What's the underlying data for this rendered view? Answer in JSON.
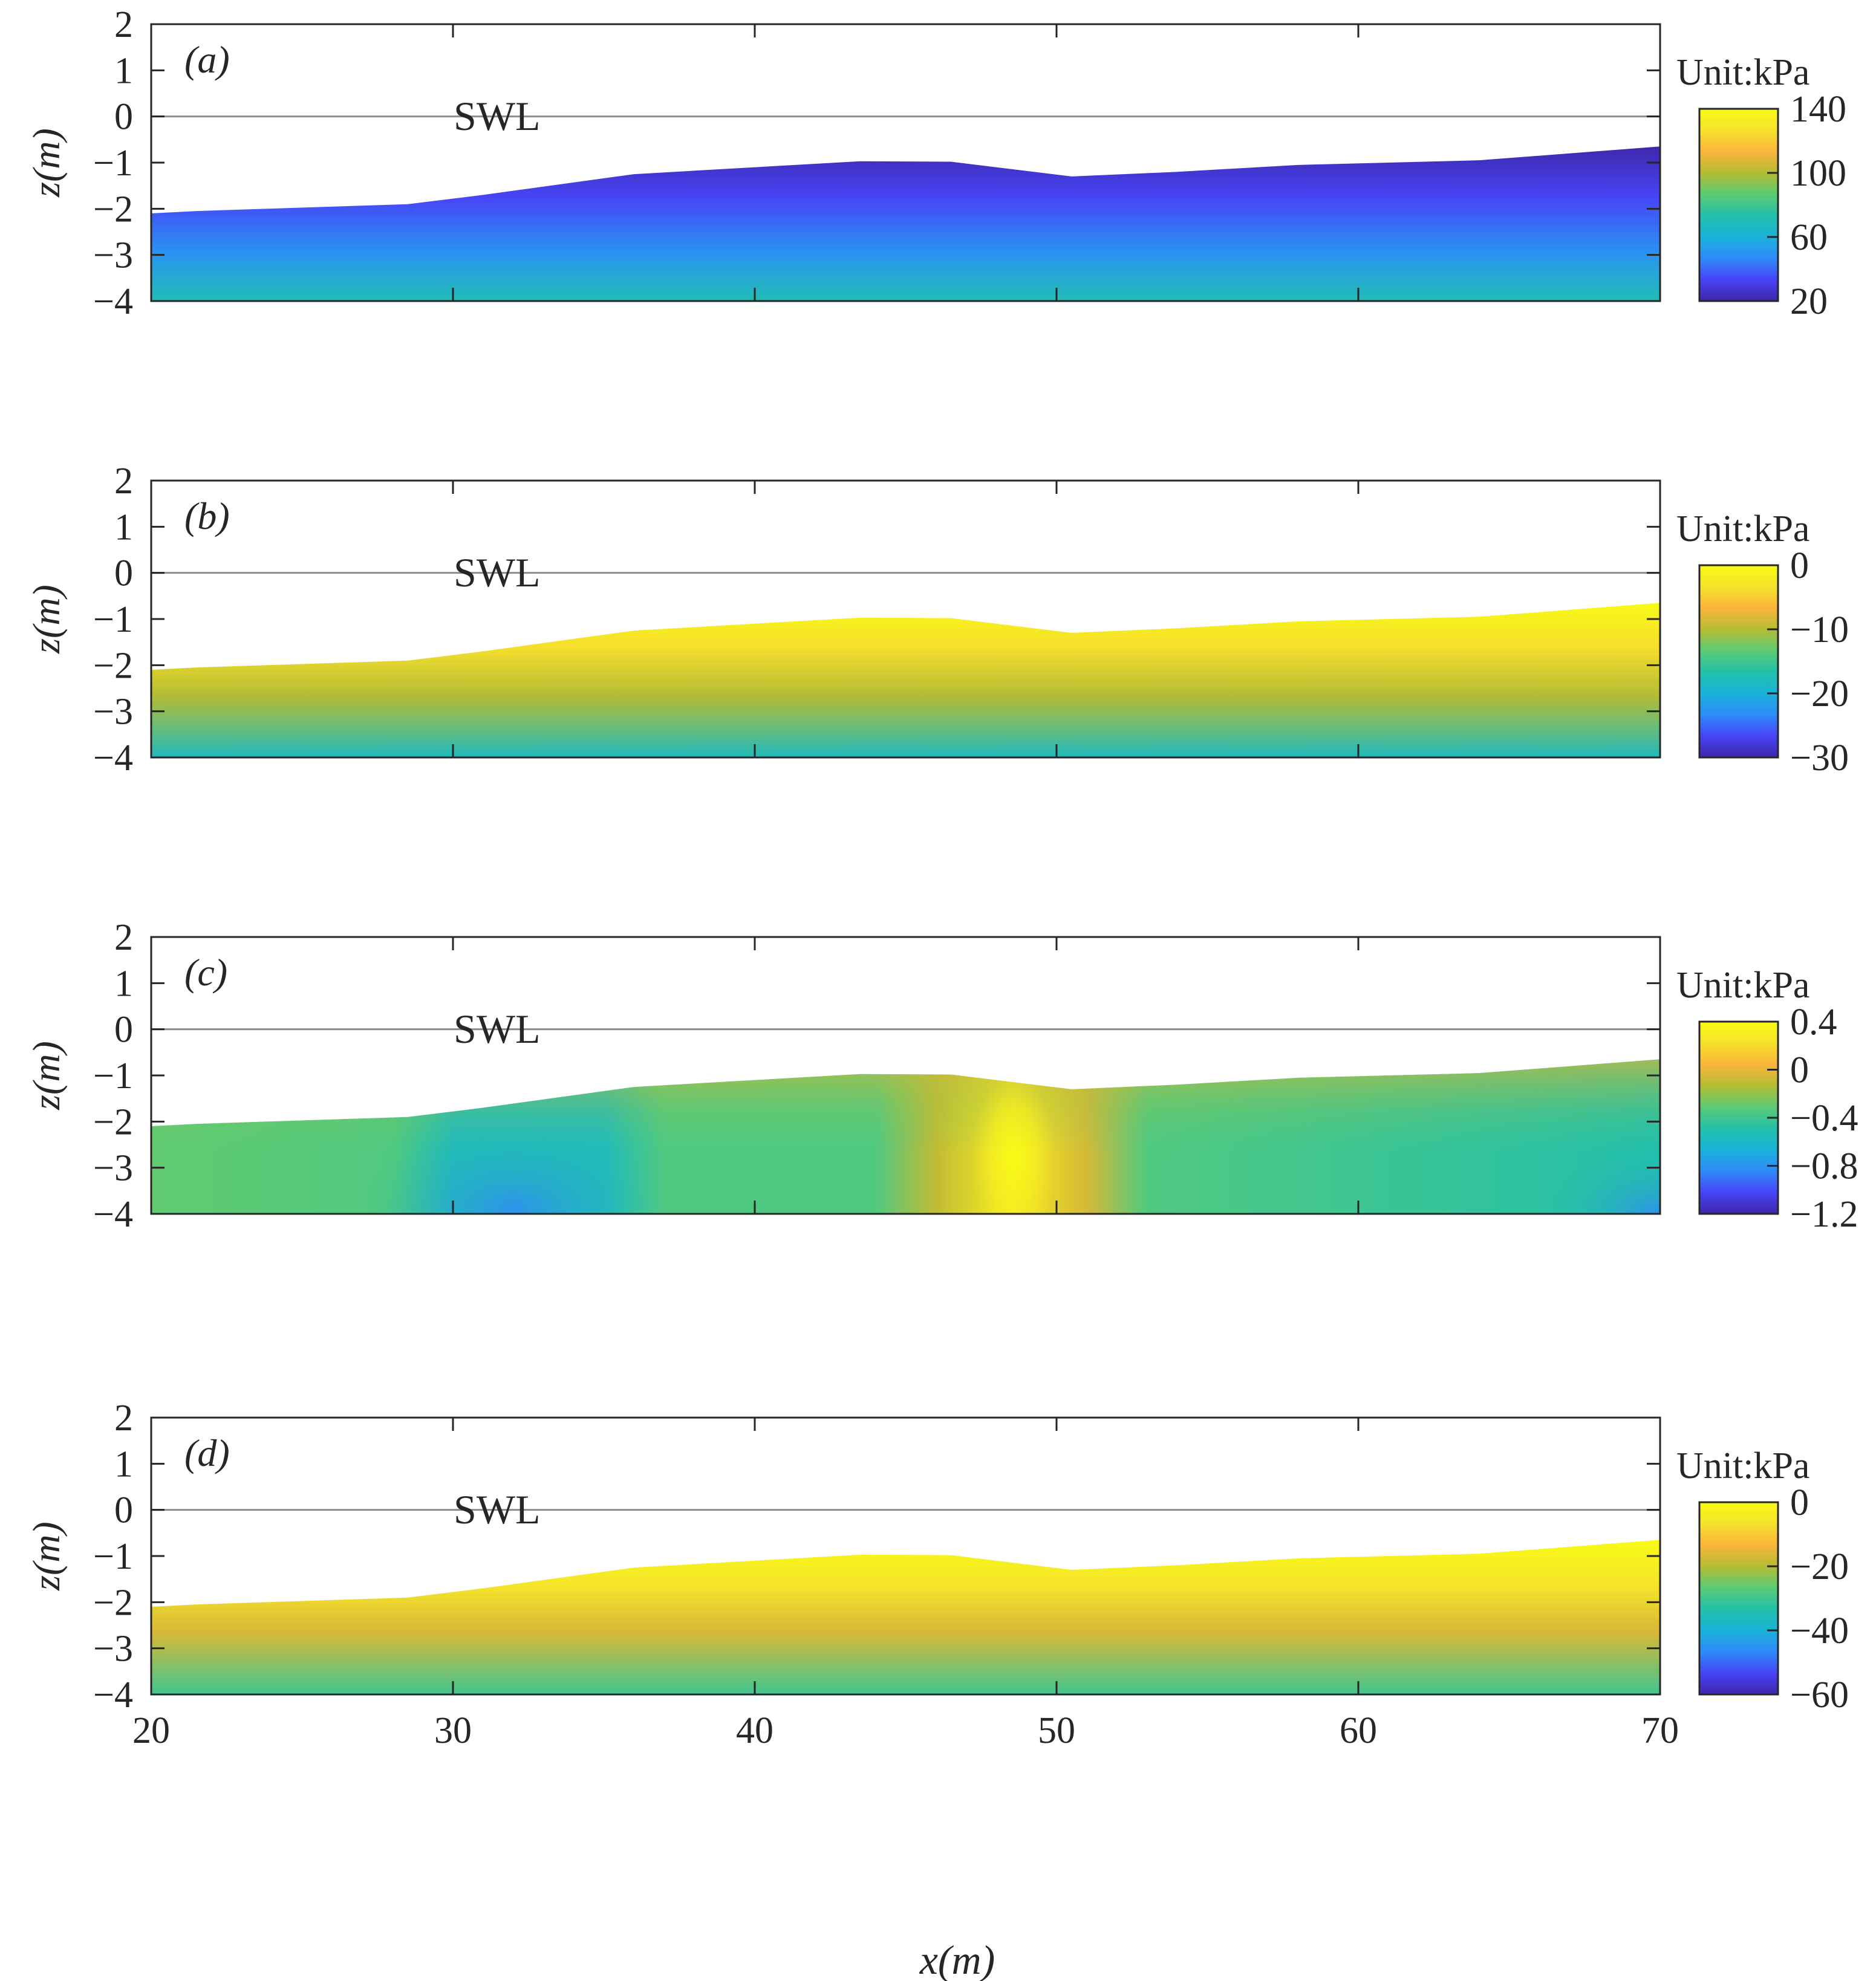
{
  "figure": {
    "x_axis_label": "x(m)"
  },
  "colormap": [
    "#3e26a8",
    "#4743f8",
    "#2f8af9",
    "#1ab2d9",
    "#23c0a9",
    "#5ccb74",
    "#b4bd33",
    "#fbb43c",
    "#f5e22b",
    "#f9fb15"
  ],
  "chart_data": [
    {
      "type": "heatmap",
      "panel_label": "(a)",
      "annotation": "SWL",
      "ylabel": "z(m)",
      "xlabel": "",
      "xlim": [
        20,
        70
      ],
      "ylim": [
        -4,
        2
      ],
      "x_ticks": [
        20,
        30,
        40,
        50,
        60,
        70
      ],
      "y_ticks": [
        2,
        1,
        0,
        -1,
        -2,
        -3,
        -4
      ],
      "y_tick_labels": [
        "2",
        "1",
        "0",
        "−1",
        "−2",
        "−3",
        "−4"
      ],
      "swl_level": 0,
      "bed_profile": {
        "x": [
          20,
          21.5,
          28.5,
          31,
          36,
          43.5,
          46.5,
          50.5,
          54,
          58,
          64,
          70
        ],
        "z": [
          -2.1,
          -2.05,
          -1.9,
          -1.7,
          -1.25,
          -0.97,
          -0.98,
          -1.3,
          -1.2,
          -1.05,
          -0.95,
          -0.65
        ]
      },
      "colorbar": {
        "unit_label": "Unit:kPa",
        "min": 20,
        "max": 140,
        "tick_values": [
          140,
          100,
          60,
          20
        ],
        "tick_labels": [
          "140",
          "100",
          "60",
          "20"
        ]
      },
      "field_description": "Pressure increasing with depth: about 20 kPa near the bed surface to about 70 kPa at z = -4 m"
    },
    {
      "type": "heatmap",
      "panel_label": "(b)",
      "annotation": "SWL",
      "ylabel": "z(m)",
      "xlabel": "",
      "xlim": [
        20,
        70
      ],
      "ylim": [
        -4,
        2
      ],
      "x_ticks": [
        20,
        30,
        40,
        50,
        60,
        70
      ],
      "y_ticks": [
        2,
        1,
        0,
        -1,
        -2,
        -3,
        -4
      ],
      "y_tick_labels": [
        "2",
        "1",
        "0",
        "−1",
        "−2",
        "−3",
        "−4"
      ],
      "swl_level": 0,
      "bed_profile": {
        "x": [
          20,
          21.5,
          28.5,
          31,
          36,
          43.5,
          46.5,
          50.5,
          54,
          58,
          64,
          70
        ],
        "z": [
          -2.1,
          -2.05,
          -1.9,
          -1.7,
          -1.25,
          -0.97,
          -0.98,
          -1.3,
          -1.2,
          -1.05,
          -0.95,
          -0.65
        ]
      },
      "colorbar": {
        "unit_label": "Unit:kPa",
        "min": -30,
        "max": 0,
        "tick_values": [
          0,
          -10,
          -20,
          -30
        ],
        "tick_labels": [
          "0",
          "−10",
          "−20",
          "−30"
        ]
      },
      "field_description": "About 0 kPa at the bed surface decreasing to about -18 kPa at z = -4 m"
    },
    {
      "type": "heatmap",
      "panel_label": "(c)",
      "annotation": "SWL",
      "ylabel": "z(m)",
      "xlabel": "",
      "xlim": [
        20,
        70
      ],
      "ylim": [
        -4,
        2
      ],
      "x_ticks": [
        20,
        30,
        40,
        50,
        60,
        70
      ],
      "y_ticks": [
        2,
        1,
        0,
        -1,
        -2,
        -3,
        -4
      ],
      "y_tick_labels": [
        "2",
        "1",
        "0",
        "−1",
        "−2",
        "−3",
        "−4"
      ],
      "swl_level": 0,
      "bed_profile": {
        "x": [
          20,
          21.5,
          28.5,
          31,
          36,
          43.5,
          46.5,
          50.5,
          54,
          58,
          64,
          70
        ],
        "z": [
          -2.1,
          -2.05,
          -1.9,
          -1.7,
          -1.25,
          -0.97,
          -0.98,
          -1.3,
          -1.2,
          -1.05,
          -0.95,
          -0.65
        ]
      },
      "colorbar": {
        "unit_label": "Unit:kPa",
        "min": -1.2,
        "max": 0.4,
        "tick_values": [
          0.4,
          0,
          -0.4,
          -0.8,
          -1.2
        ],
        "tick_labels": [
          "0.4",
          "0",
          "−0.4",
          "−0.8",
          "−1.2"
        ]
      },
      "field_description": "Mostly -0.1 to -0.6 kPa with a positive column near x = 46.5-51 m peaking near 0.4 kPa; lowest values about -0.8 kPa near the bottom around x = 28-36 m and at x = 70 m"
    },
    {
      "type": "heatmap",
      "panel_label": "(d)",
      "annotation": "SWL",
      "ylabel": "z(m)",
      "xlabel": "x(m)",
      "xlim": [
        20,
        70
      ],
      "ylim": [
        -4,
        2
      ],
      "x_ticks": [
        20,
        30,
        40,
        50,
        60,
        70
      ],
      "y_ticks": [
        2,
        1,
        0,
        -1,
        -2,
        -3,
        -4
      ],
      "y_tick_labels": [
        "2",
        "1",
        "0",
        "−1",
        "−2",
        "−3",
        "−4"
      ],
      "swl_level": 0,
      "bed_profile": {
        "x": [
          20,
          21.5,
          28.5,
          31,
          36,
          43.5,
          46.5,
          50.5,
          54,
          58,
          64,
          70
        ],
        "z": [
          -2.1,
          -2.05,
          -1.9,
          -1.7,
          -1.25,
          -0.97,
          -0.98,
          -1.3,
          -1.2,
          -1.05,
          -0.95,
          -0.65
        ]
      },
      "colorbar": {
        "unit_label": "Unit:kPa",
        "min": -60,
        "max": 0,
        "tick_values": [
          0,
          -20,
          -40,
          -60
        ],
        "tick_labels": [
          "0",
          "−20",
          "−40",
          "−60"
        ]
      },
      "field_description": "About 0 kPa at the bed surface decreasing to about -30 kPa at z = -4 m"
    }
  ]
}
